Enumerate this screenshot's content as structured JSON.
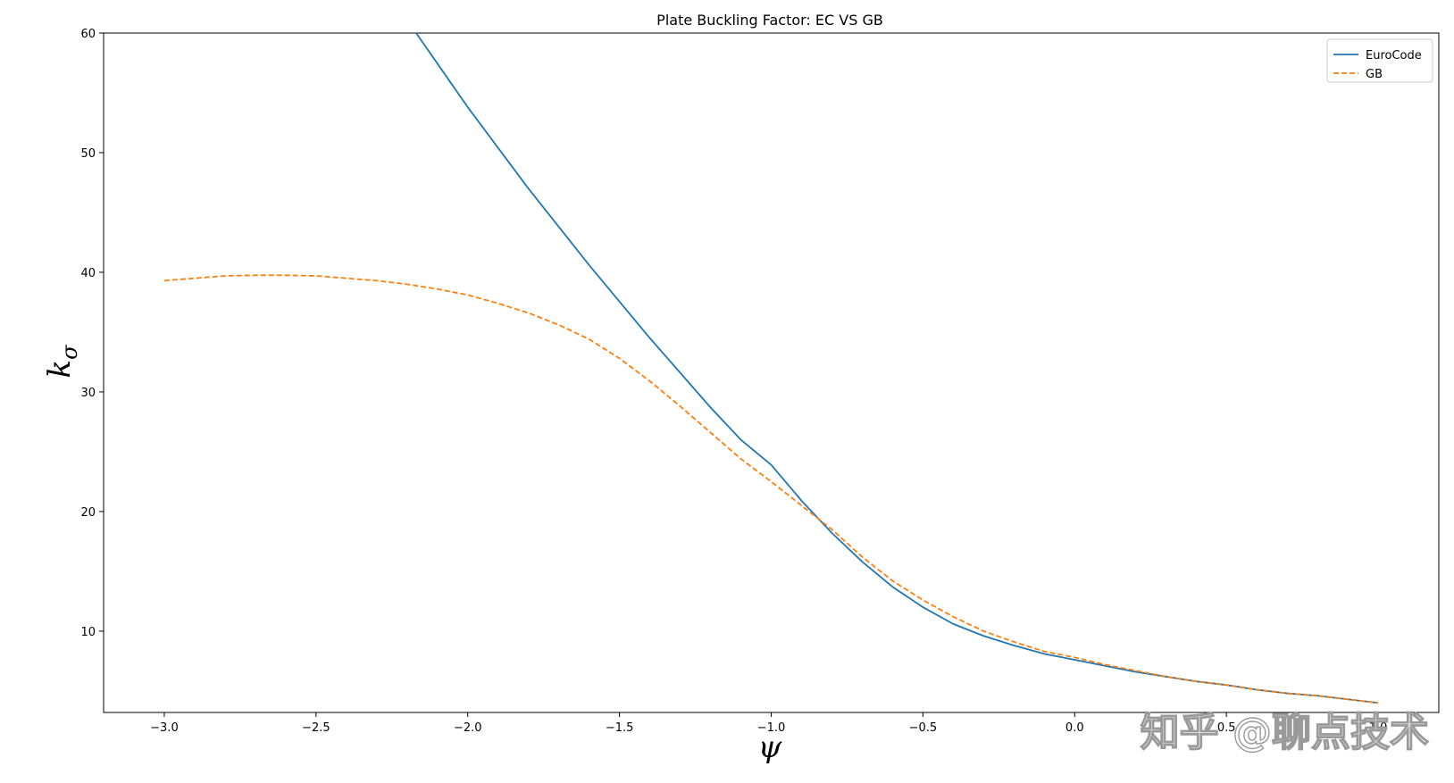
{
  "chart_data": {
    "type": "line",
    "title": "Plate Buckling Factor: EC VS GB",
    "xlabel": "ψ",
    "ylabel": "k",
    "ylabel_sub": "σ",
    "xlim": [
      -3.2,
      1.2
    ],
    "ylim": [
      3.2,
      60
    ],
    "x_ticks": [
      -3.0,
      -2.5,
      -2.0,
      -1.5,
      -1.0,
      -0.5,
      0.0,
      0.5,
      1.0
    ],
    "x_tick_labels": [
      "−3.0",
      "−2.5",
      "−2.0",
      "−1.5",
      "−1.0",
      "−0.5",
      "0.0",
      "0.5",
      "1.0"
    ],
    "y_ticks": [
      10,
      20,
      30,
      40,
      50,
      60
    ],
    "y_tick_labels": [
      "10",
      "20",
      "30",
      "40",
      "50",
      "60"
    ],
    "grid": false,
    "legend_position": "top-right",
    "series": [
      {
        "name": "EuroCode",
        "color": "#1f77b4",
        "style": "solid",
        "x": [
          -2.17,
          -2.0,
          -1.8,
          -1.6,
          -1.4,
          -1.2,
          -1.1,
          -1.0,
          -0.9,
          -0.8,
          -0.7,
          -0.6,
          -0.5,
          -0.4,
          -0.3,
          -0.2,
          -0.1,
          0.0,
          0.1,
          0.2,
          0.3,
          0.4,
          0.5,
          0.6,
          0.7,
          0.8,
          0.9,
          1.0
        ],
        "y": [
          60.0,
          53.8,
          47.0,
          40.6,
          34.5,
          28.7,
          26.0,
          23.9,
          20.9,
          18.2,
          15.8,
          13.7,
          12.0,
          10.6,
          9.6,
          8.8,
          8.1,
          7.6,
          7.1,
          6.6,
          6.2,
          5.8,
          5.5,
          5.1,
          4.8,
          4.6,
          4.3,
          4.0
        ]
      },
      {
        "name": "GB",
        "color": "#ff7f0e",
        "style": "dashed",
        "x": [
          -3.0,
          -2.9,
          -2.8,
          -2.7,
          -2.6,
          -2.5,
          -2.4,
          -2.3,
          -2.2,
          -2.1,
          -2.0,
          -1.9,
          -1.8,
          -1.7,
          -1.6,
          -1.5,
          -1.4,
          -1.3,
          -1.2,
          -1.1,
          -1.0,
          -0.9,
          -0.8,
          -0.7,
          -0.6,
          -0.5,
          -0.4,
          -0.3,
          -0.2,
          -0.1,
          0.0,
          0.1,
          0.2,
          0.3,
          0.4,
          0.5,
          0.6,
          0.7,
          0.8,
          0.9,
          1.0
        ],
        "y": [
          39.3,
          39.5,
          39.7,
          39.75,
          39.75,
          39.7,
          39.5,
          39.3,
          39.0,
          38.6,
          38.1,
          37.4,
          36.6,
          35.6,
          34.4,
          32.8,
          30.9,
          28.8,
          26.6,
          24.4,
          22.5,
          20.5,
          18.5,
          16.2,
          14.2,
          12.6,
          11.2,
          10.0,
          9.1,
          8.3,
          7.8,
          7.2,
          6.7,
          6.2,
          5.8,
          5.5,
          5.1,
          4.8,
          4.6,
          4.3,
          4.0
        ]
      }
    ]
  },
  "watermark": {
    "text": "知乎 @聊点技术"
  }
}
